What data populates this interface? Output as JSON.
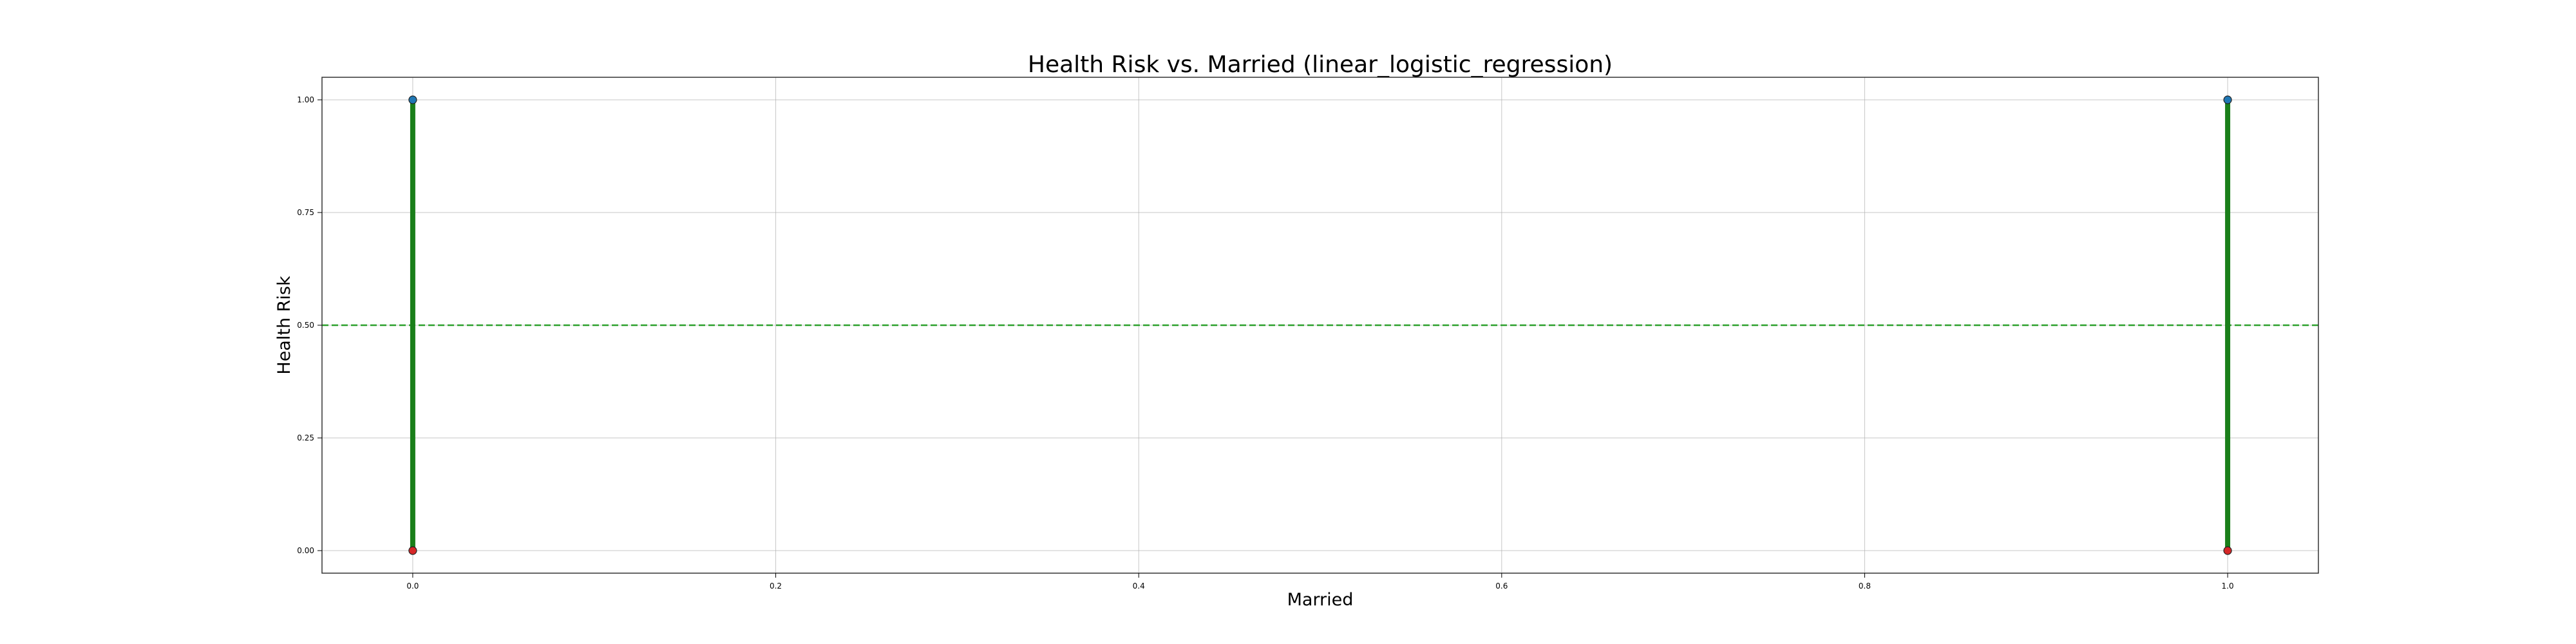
{
  "chart_data": {
    "type": "scatter",
    "title": "Health Risk vs. Married (linear_logistic_regression)",
    "xlabel": "Married",
    "ylabel": "Health Risk",
    "xlim": [
      -0.05,
      1.05
    ],
    "ylim": [
      -0.05,
      1.05
    ],
    "x_ticks": [
      "0.0",
      "0.2",
      "0.4",
      "0.6",
      "0.8",
      "1.0"
    ],
    "y_ticks": [
      "0.00",
      "0.25",
      "0.50",
      "0.75",
      "1.00"
    ],
    "grid": true,
    "threshold": 0.5,
    "series": [
      {
        "points": [
          [
            0.0,
            1.0
          ],
          [
            1.0,
            1.0
          ]
        ],
        "color": "#1f77b4"
      },
      {
        "points": [
          [
            0.0,
            0.0
          ],
          [
            1.0,
            0.0
          ]
        ],
        "color": "#d62728"
      }
    ],
    "prediction_range": [
      [
        0.0,
        0.0,
        1.0
      ],
      [
        1.0,
        0.0,
        1.0
      ]
    ],
    "colors": {
      "positive": "#1f77b4",
      "negative": "#d62728",
      "prediction": "#1a7f1a",
      "threshold": "#2ca02c",
      "grid": "#b0b0b0"
    }
  }
}
